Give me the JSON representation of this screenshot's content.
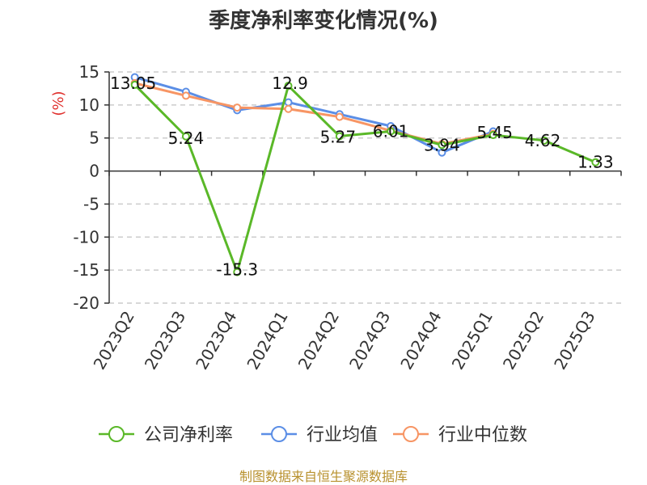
{
  "chart_data": {
    "type": "line",
    "title": "季度净利率变化情况(%)",
    "ylabel": "(%)",
    "xlabel": "",
    "ylim": [
      -20,
      15
    ],
    "yticks": [
      15,
      10,
      5,
      0,
      -5,
      -10,
      -15,
      -20
    ],
    "categories": [
      "2023Q2",
      "2023Q3",
      "2023Q4",
      "2024Q1",
      "2024Q2",
      "2024Q3",
      "2024Q4",
      "2025Q1",
      "2025Q2",
      "2025Q3"
    ],
    "series": [
      {
        "name": "公司净利率",
        "color": "#5ab828",
        "values": [
          13.05,
          5.24,
          -15.3,
          12.9,
          5.27,
          6.01,
          3.94,
          5.45,
          4.62,
          1.33
        ],
        "labels": [
          "13.05",
          "5.24",
          "-15.3",
          "12.9",
          "5.27",
          "6.01",
          "3.94",
          "5.45",
          "4.62",
          "1.33"
        ]
      },
      {
        "name": "行业均值",
        "color": "#5b8ee6",
        "values": [
          14.2,
          12.0,
          9.2,
          10.4,
          8.6,
          6.8,
          2.8,
          6.0,
          null,
          null
        ]
      },
      {
        "name": "行业中位数",
        "color": "#f79564",
        "values": [
          13.3,
          11.4,
          9.6,
          9.4,
          8.2,
          6.1,
          4.1,
          5.6,
          null,
          null
        ]
      }
    ],
    "grid": "horizontal-dashed",
    "legend_position": "bottom"
  },
  "footer": {
    "source": "制图数据来自恒生聚源数据库"
  }
}
